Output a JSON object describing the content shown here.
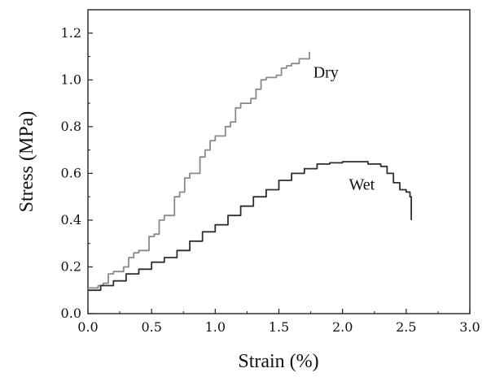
{
  "chart_data": {
    "type": "line",
    "title": "",
    "xlabel": "Strain (%)",
    "ylabel": "Stress (MPa)",
    "xlim": [
      0.0,
      3.0
    ],
    "ylim": [
      0.0,
      1.3
    ],
    "xticks": [
      "0.0",
      "0.5",
      "1.0",
      "1.5",
      "2.0",
      "2.5",
      "3.0"
    ],
    "yticks": [
      "0.0",
      "0.2",
      "0.4",
      "0.6",
      "0.8",
      "1.0",
      "1.2"
    ],
    "grid": false,
    "legend": "none",
    "series": [
      {
        "name": "Dry",
        "color": "#8a8a8a",
        "x": [
          0.0,
          0.08,
          0.12,
          0.16,
          0.2,
          0.28,
          0.32,
          0.36,
          0.4,
          0.48,
          0.52,
          0.56,
          0.6,
          0.68,
          0.72,
          0.76,
          0.8,
          0.88,
          0.92,
          0.96,
          1.0,
          1.08,
          1.12,
          1.16,
          1.2,
          1.28,
          1.32,
          1.36,
          1.4,
          1.48,
          1.52,
          1.56,
          1.6,
          1.66,
          1.74
        ],
        "y": [
          0.11,
          0.12,
          0.13,
          0.17,
          0.18,
          0.2,
          0.24,
          0.26,
          0.27,
          0.33,
          0.34,
          0.4,
          0.42,
          0.5,
          0.52,
          0.58,
          0.6,
          0.67,
          0.7,
          0.74,
          0.76,
          0.8,
          0.82,
          0.88,
          0.9,
          0.92,
          0.96,
          1.0,
          1.01,
          1.02,
          1.05,
          1.06,
          1.07,
          1.09,
          1.12
        ]
      },
      {
        "name": "Wet",
        "color": "#2e2e2e",
        "x": [
          0.0,
          0.1,
          0.2,
          0.3,
          0.4,
          0.5,
          0.6,
          0.7,
          0.8,
          0.9,
          1.0,
          1.1,
          1.2,
          1.3,
          1.4,
          1.5,
          1.6,
          1.7,
          1.8,
          1.9,
          2.0,
          2.1,
          2.2,
          2.3,
          2.35,
          2.4,
          2.45,
          2.5,
          2.53,
          2.54
        ],
        "y": [
          0.1,
          0.12,
          0.14,
          0.17,
          0.19,
          0.22,
          0.24,
          0.27,
          0.31,
          0.35,
          0.38,
          0.42,
          0.46,
          0.5,
          0.53,
          0.57,
          0.6,
          0.62,
          0.64,
          0.645,
          0.65,
          0.65,
          0.64,
          0.63,
          0.6,
          0.56,
          0.53,
          0.52,
          0.5,
          0.4
        ]
      }
    ],
    "annotations": [
      {
        "text": "Dry",
        "series": "Dry",
        "x": 1.77,
        "y": 1.01
      },
      {
        "text": "Wet",
        "series": "Wet",
        "x": 2.05,
        "y": 0.53
      }
    ]
  }
}
